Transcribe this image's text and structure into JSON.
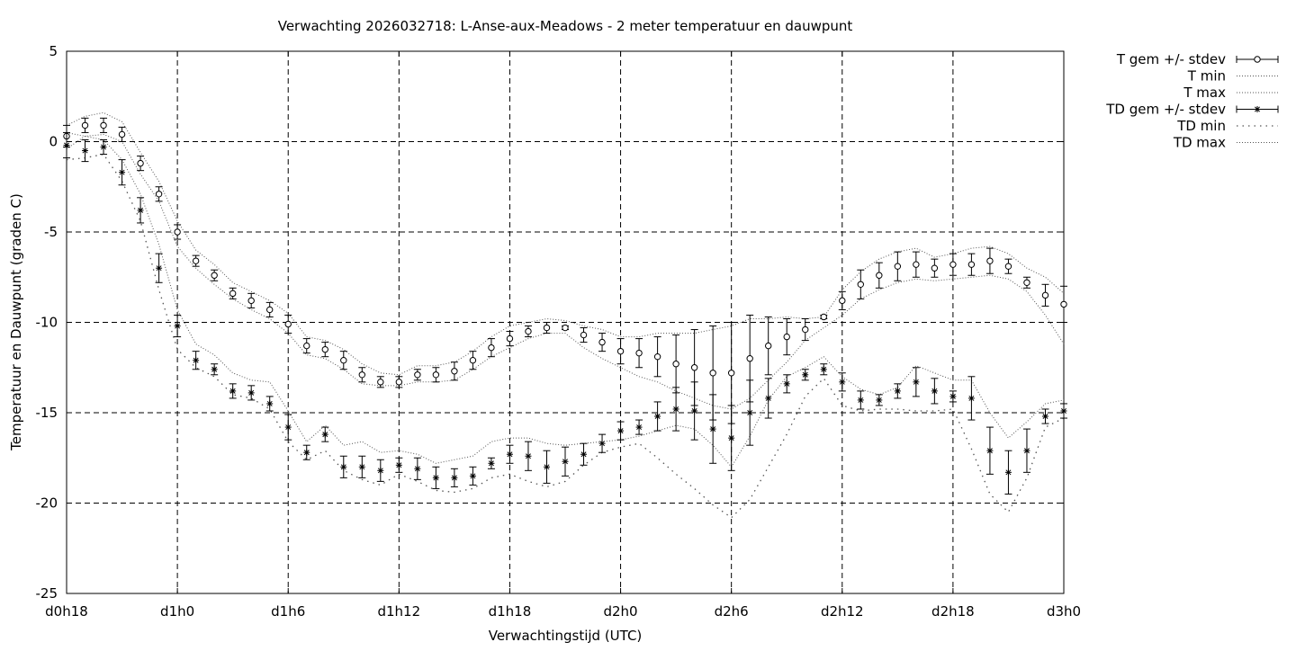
{
  "chart_data": {
    "type": "scatter",
    "title": "Verwachting 2026032718: L-Anse-aux-Meadows - 2 meter temperatuur en dauwpunt",
    "xlabel": "Verwachtingstijd (UTC)",
    "ylabel": "Temperatuur en Dauwpunt (graden C)",
    "xlim": [
      18,
      72
    ],
    "ylim": [
      -25,
      5
    ],
    "grid": true,
    "legend_position": "outside-top-right",
    "x_ticks": [
      {
        "value": 18,
        "label": "d0h18"
      },
      {
        "value": 24,
        "label": "d1h0"
      },
      {
        "value": 30,
        "label": "d1h6"
      },
      {
        "value": 36,
        "label": "d1h12"
      },
      {
        "value": 42,
        "label": "d1h18"
      },
      {
        "value": 48,
        "label": "d2h0"
      },
      {
        "value": 54,
        "label": "d2h6"
      },
      {
        "value": 60,
        "label": "d2h12"
      },
      {
        "value": 66,
        "label": "d2h18"
      },
      {
        "value": 72,
        "label": "d3h0"
      }
    ],
    "y_ticks": [
      {
        "value": 5,
        "label": "5"
      },
      {
        "value": 0,
        "label": "0"
      },
      {
        "value": -5,
        "label": "-5"
      },
      {
        "value": -10,
        "label": "-10"
      },
      {
        "value": -15,
        "label": "-15"
      },
      {
        "value": -20,
        "label": "-20"
      },
      {
        "value": -25,
        "label": "-25"
      }
    ],
    "x": [
      18,
      19,
      20,
      21,
      22,
      23,
      24,
      25,
      26,
      27,
      28,
      29,
      30,
      31,
      32,
      33,
      34,
      35,
      36,
      37,
      38,
      39,
      40,
      41,
      42,
      43,
      44,
      45,
      46,
      47,
      48,
      49,
      50,
      51,
      52,
      53,
      54,
      55,
      56,
      57,
      58,
      59,
      60,
      61,
      62,
      63,
      64,
      65,
      66,
      67,
      68,
      69,
      70,
      71,
      72
    ],
    "series": [
      {
        "name": "T gem +/- stdev",
        "marker": "circle",
        "mean": [
          0.3,
          0.9,
          0.9,
          0.4,
          -1.2,
          -2.9,
          -5.0,
          -6.6,
          -7.4,
          -8.4,
          -8.8,
          -9.3,
          -10.1,
          -11.3,
          -11.5,
          -12.1,
          -12.9,
          -13.3,
          -13.3,
          -12.9,
          -12.9,
          -12.7,
          -12.1,
          -11.4,
          -10.9,
          -10.5,
          -10.3,
          -10.3,
          -10.7,
          -11.1,
          -11.6,
          -11.7,
          -11.9,
          -12.3,
          -12.5,
          -12.8,
          -12.8,
          -12.0,
          -11.3,
          -10.8,
          -10.4,
          -9.7,
          -8.8,
          -7.9,
          -7.4,
          -6.9,
          -6.8,
          -7.0,
          -6.8,
          -6.8,
          -6.6,
          -6.9,
          -7.8,
          -8.5,
          -9.0
        ],
        "stdev": [
          0.6,
          0.4,
          0.4,
          0.4,
          0.4,
          0.4,
          0.4,
          0.3,
          0.3,
          0.3,
          0.4,
          0.4,
          0.5,
          0.4,
          0.4,
          0.5,
          0.4,
          0.3,
          0.3,
          0.3,
          0.4,
          0.5,
          0.5,
          0.5,
          0.4,
          0.3,
          0.3,
          0.1,
          0.4,
          0.5,
          0.7,
          0.8,
          1.1,
          1.6,
          2.1,
          2.6,
          2.8,
          2.4,
          1.6,
          1.0,
          0.6,
          0.1,
          0.5,
          0.8,
          0.7,
          0.8,
          0.7,
          0.5,
          0.6,
          0.6,
          0.7,
          0.4,
          0.3,
          0.6,
          1.0
        ]
      },
      {
        "name": "T min",
        "line": "dotted",
        "values": [
          -0.4,
          0.3,
          0.4,
          0.0,
          -1.8,
          -3.3,
          -5.8,
          -7.0,
          -7.9,
          -8.7,
          -9.3,
          -9.8,
          -10.6,
          -11.8,
          -12.0,
          -12.6,
          -13.4,
          -13.5,
          -13.5,
          -13.3,
          -13.3,
          -13.2,
          -12.6,
          -11.9,
          -11.4,
          -10.9,
          -10.6,
          -10.6,
          -11.4,
          -12.0,
          -12.5,
          -13.0,
          -13.3,
          -13.8,
          -14.2,
          -14.6,
          -14.8,
          -14.2,
          -13.2,
          -12.2,
          -11.0,
          -10.3,
          -9.6,
          -8.7,
          -8.2,
          -7.8,
          -7.6,
          -7.7,
          -7.6,
          -7.5,
          -7.4,
          -7.6,
          -8.3,
          -9.6,
          -11.2
        ]
      },
      {
        "name": "T max",
        "line": "dotted",
        "values": [
          0.9,
          1.4,
          1.6,
          1.1,
          -0.6,
          -2.2,
          -4.4,
          -6.0,
          -6.8,
          -7.8,
          -8.3,
          -8.8,
          -9.5,
          -10.8,
          -11.0,
          -11.5,
          -12.3,
          -12.8,
          -12.9,
          -12.4,
          -12.4,
          -12.2,
          -11.6,
          -10.8,
          -10.2,
          -10.0,
          -9.8,
          -9.9,
          -10.2,
          -10.4,
          -10.8,
          -10.8,
          -10.6,
          -10.6,
          -10.6,
          -10.4,
          -10.2,
          -9.8,
          -9.8,
          -9.7,
          -9.8,
          -9.7,
          -8.2,
          -7.2,
          -6.5,
          -6.1,
          -5.9,
          -6.4,
          -6.2,
          -5.9,
          -5.8,
          -6.2,
          -7.0,
          -7.5,
          -8.4
        ]
      },
      {
        "name": "TD gem +/- stdev",
        "marker": "star",
        "mean": [
          -0.2,
          -0.5,
          -0.3,
          -1.7,
          -3.8,
          -7.0,
          -10.2,
          -12.1,
          -12.6,
          -13.8,
          -13.9,
          -14.5,
          -15.8,
          -17.2,
          -16.2,
          -18.0,
          -18.0,
          -18.2,
          -17.9,
          -18.1,
          -18.6,
          -18.6,
          -18.5,
          -17.8,
          -17.3,
          -17.4,
          -18.0,
          -17.7,
          -17.3,
          -16.7,
          -16.0,
          -15.8,
          -15.2,
          -14.8,
          -14.9,
          -15.9,
          -16.4,
          -15.0,
          -14.2,
          -13.4,
          -12.9,
          -12.6,
          -13.3,
          -14.3,
          -14.3,
          -13.8,
          -13.3,
          -13.8,
          -14.1,
          -14.2,
          -17.1,
          -18.3,
          -17.1,
          -15.2,
          -14.9
        ],
        "stdev": [
          0.7,
          0.6,
          0.4,
          0.7,
          0.7,
          0.8,
          0.6,
          0.5,
          0.3,
          0.4,
          0.4,
          0.4,
          0.7,
          0.4,
          0.4,
          0.6,
          0.6,
          0.6,
          0.4,
          0.6,
          0.6,
          0.5,
          0.5,
          0.3,
          0.5,
          0.8,
          0.9,
          0.8,
          0.6,
          0.5,
          0.5,
          0.4,
          0.8,
          1.2,
          1.6,
          1.9,
          1.8,
          1.8,
          1.1,
          0.5,
          0.3,
          0.3,
          0.5,
          0.5,
          0.3,
          0.4,
          0.8,
          0.7,
          0.3,
          1.2,
          1.3,
          1.2,
          1.2,
          0.4,
          0.4
        ]
      },
      {
        "name": "TD min",
        "line": "dotted",
        "values": [
          -1.0,
          -0.9,
          -0.7,
          -2.2,
          -4.4,
          -8.2,
          -11.5,
          -12.5,
          -13.0,
          -14.0,
          -14.2,
          -14.8,
          -16.6,
          -17.6,
          -17.1,
          -18.2,
          -18.7,
          -19.0,
          -18.4,
          -18.8,
          -19.3,
          -19.4,
          -19.2,
          -18.6,
          -18.4,
          -18.8,
          -19.1,
          -18.8,
          -17.9,
          -17.2,
          -16.9,
          -16.7,
          -17.5,
          -18.4,
          -19.2,
          -20.1,
          -20.8,
          -19.8,
          -18.0,
          -16.2,
          -14.1,
          -13.1,
          -14.6,
          -14.9,
          -14.8,
          -14.8,
          -14.9,
          -14.9,
          -14.8,
          -17.0,
          -19.5,
          -20.5,
          -18.6,
          -15.8,
          -15.3
        ]
      },
      {
        "name": "TD max",
        "line": "dotted",
        "values": [
          0.5,
          0.3,
          0.1,
          -1.0,
          -2.9,
          -5.7,
          -9.3,
          -11.2,
          -11.8,
          -12.8,
          -13.2,
          -13.3,
          -14.9,
          -16.6,
          -15.7,
          -16.8,
          -16.6,
          -17.2,
          -17.1,
          -17.3,
          -17.8,
          -17.6,
          -17.4,
          -16.6,
          -16.4,
          -16.4,
          -16.7,
          -16.8,
          -16.7,
          -16.6,
          -16.5,
          -16.3,
          -16.0,
          -15.7,
          -15.9,
          -16.8,
          -18.0,
          -16.3,
          -14.3,
          -13.0,
          -12.5,
          -11.9,
          -13.0,
          -13.7,
          -14.0,
          -13.6,
          -12.4,
          -12.8,
          -13.2,
          -13.2,
          -15.0,
          -16.4,
          -15.5,
          -14.5,
          -14.3
        ]
      }
    ]
  }
}
